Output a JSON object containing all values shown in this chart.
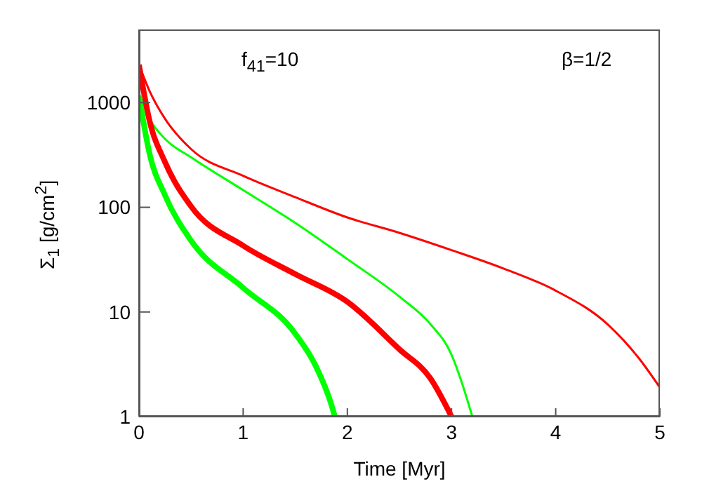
{
  "chart_data": {
    "type": "line",
    "xlabel": "Time [Myr]",
    "ylabel": "Σ$_{1}$ [g/cm$^{2}$]",
    "annotations": [
      "f$_{41}$=10",
      "β=1/2"
    ],
    "log": "y",
    "xlim": [
      0,
      5
    ],
    "xticks": [
      0,
      1,
      2,
      3,
      4,
      5
    ],
    "ylim": [
      1,
      5000
    ],
    "yticks": [
      1,
      10,
      100,
      1000
    ],
    "marker": "none",
    "line_style": "solid",
    "series": [
      {
        "color": "#ff0000",
        "x": [
          0,
          0.1,
          0.25,
          0.5,
          1,
          1.5,
          2,
          2.5,
          3,
          3.5,
          4,
          4.5,
          4.8,
          5
        ],
        "values": [
          2300,
          1300,
          700,
          360,
          200,
          125,
          80,
          57,
          39,
          26,
          16,
          7.6,
          3.6,
          1.9
        ]
      },
      {
        "color": "#00ff00",
        "x": [
          0,
          0.1,
          0.25,
          0.5,
          1,
          1.5,
          2,
          2.5,
          2.8,
          3,
          3.1,
          3.2
        ],
        "values": [
          1170,
          700,
          450,
          300,
          146,
          71,
          32,
          14,
          7.6,
          3.9,
          2.1,
          1
        ]
      },
      {
        "color": "#ff0000",
        "x": [
          0,
          0.1,
          0.25,
          0.5,
          1,
          1.5,
          2,
          2.5,
          2.8,
          3
        ],
        "values": [
          2300,
          680,
          270,
          102,
          43,
          23,
          12.5,
          4.4,
          2.3,
          1
        ]
      },
      {
        "color": "#00ff00",
        "x": [
          0,
          0.1,
          0.25,
          0.5,
          1,
          1.5,
          1.7,
          1.85,
          1.88
        ],
        "values": [
          1170,
          330,
          130,
          48,
          17,
          6.2,
          3,
          1.27,
          1
        ]
      }
    ]
  }
}
